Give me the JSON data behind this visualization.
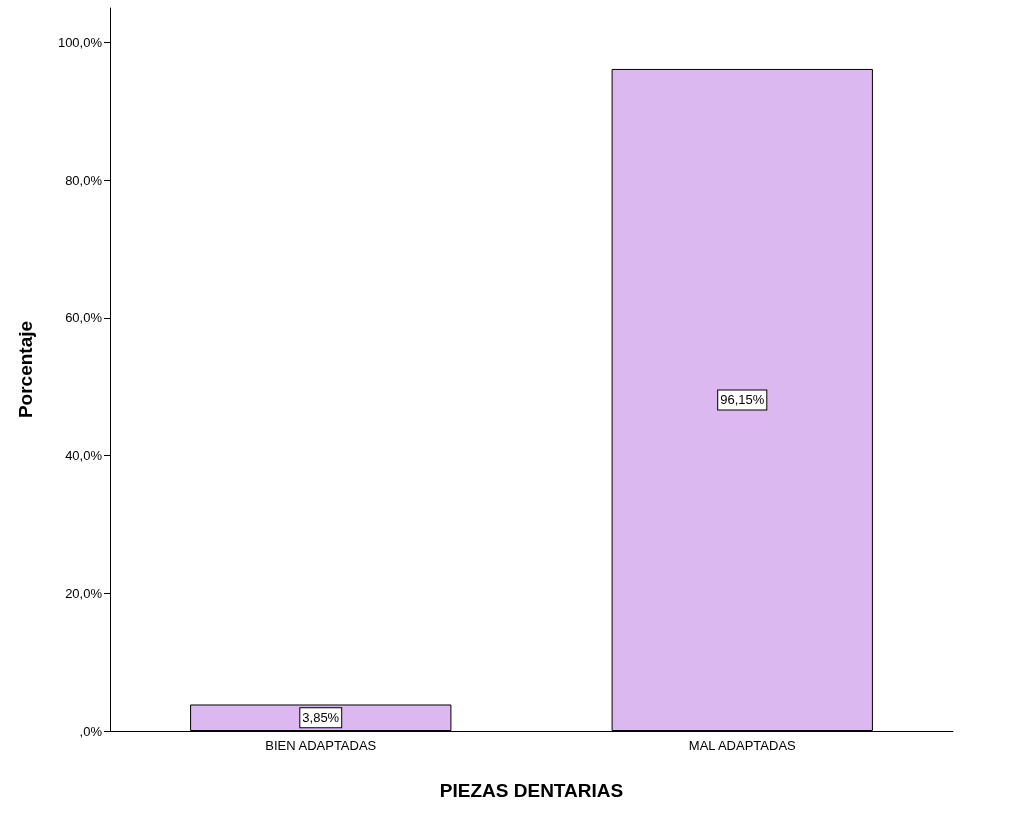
{
  "chart_data": {
    "type": "bar",
    "xlabel": "PIEZAS DENTARIAS",
    "ylabel": "Porcentaje",
    "categories": [
      "BIEN ADAPTADAS",
      "MAL ADAPTADAS"
    ],
    "values": [
      3.85,
      96.15
    ],
    "color": "#dcb8f0",
    "value_labels": [
      "3,85%",
      "96,15%"
    ],
    "ylim": [
      0,
      105
    ],
    "yticks": [
      {
        "value": 0,
        "label": ",0%"
      },
      {
        "value": 20,
        "label": "20,0%"
      },
      {
        "value": 40,
        "label": "40,0%"
      },
      {
        "value": 60,
        "label": "60,0%"
      },
      {
        "value": 80,
        "label": "80,0%"
      },
      {
        "value": 100,
        "label": "100,0%"
      }
    ],
    "grid": false
  }
}
